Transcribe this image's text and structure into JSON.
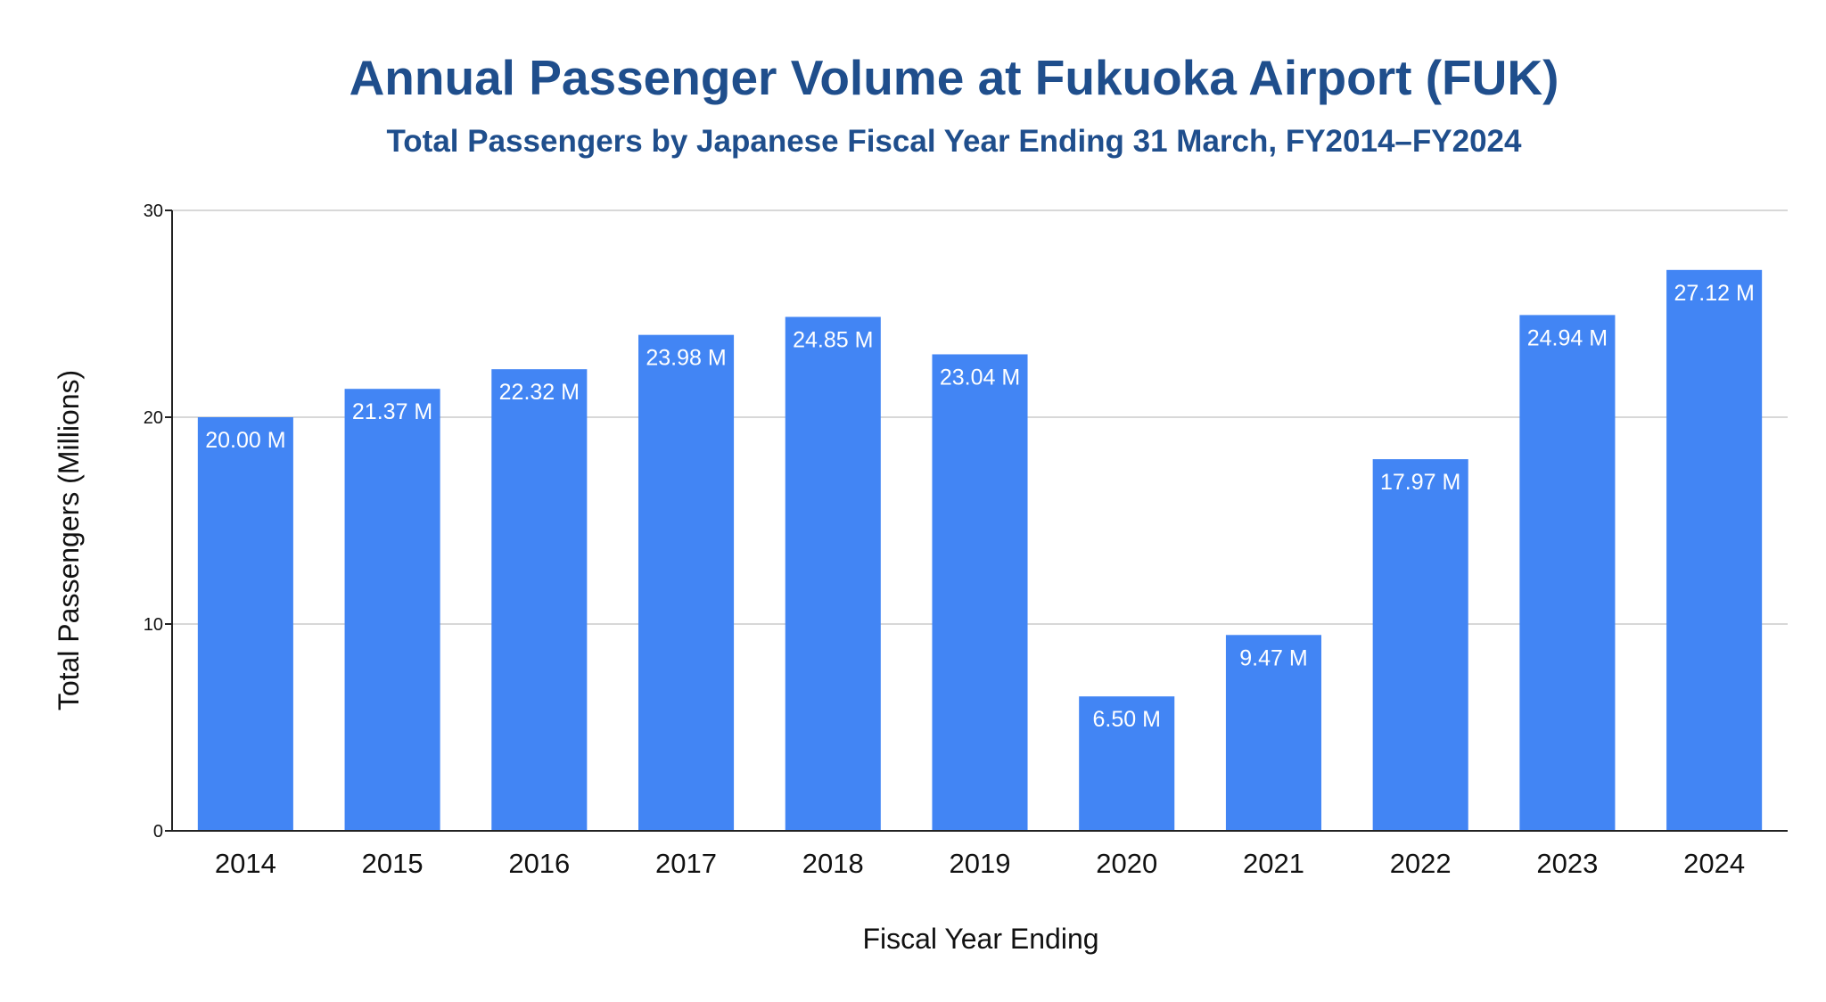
{
  "chart_data": {
    "type": "bar",
    "title": "Annual Passenger Volume at Fukuoka Airport (FUK)",
    "subtitle": "Total Passengers by Japanese Fiscal Year Ending 31 March, FY2014–FY2024",
    "xlabel": "Fiscal Year Ending",
    "ylabel": "Total Passengers (Millions)",
    "categories": [
      "2014",
      "2015",
      "2016",
      "2017",
      "2018",
      "2019",
      "2020",
      "2021",
      "2022",
      "2023",
      "2024"
    ],
    "values": [
      20.0,
      21.37,
      22.32,
      23.98,
      24.85,
      23.04,
      6.5,
      9.47,
      17.97,
      24.94,
      27.12
    ],
    "data_labels": [
      "20.00 M",
      "21.37 M",
      "22.32 M",
      "23.98 M",
      "24.85 M",
      "23.04 M",
      "6.50 M",
      "9.47 M",
      "17.97 M",
      "24.94 M",
      "27.12 M"
    ],
    "ylim": [
      0,
      30
    ],
    "yticks": [
      "0",
      "10",
      "20",
      "30"
    ],
    "grid": true,
    "legend": "none",
    "bar_color": "#4285f4",
    "title_color": "#1f4e8c"
  }
}
